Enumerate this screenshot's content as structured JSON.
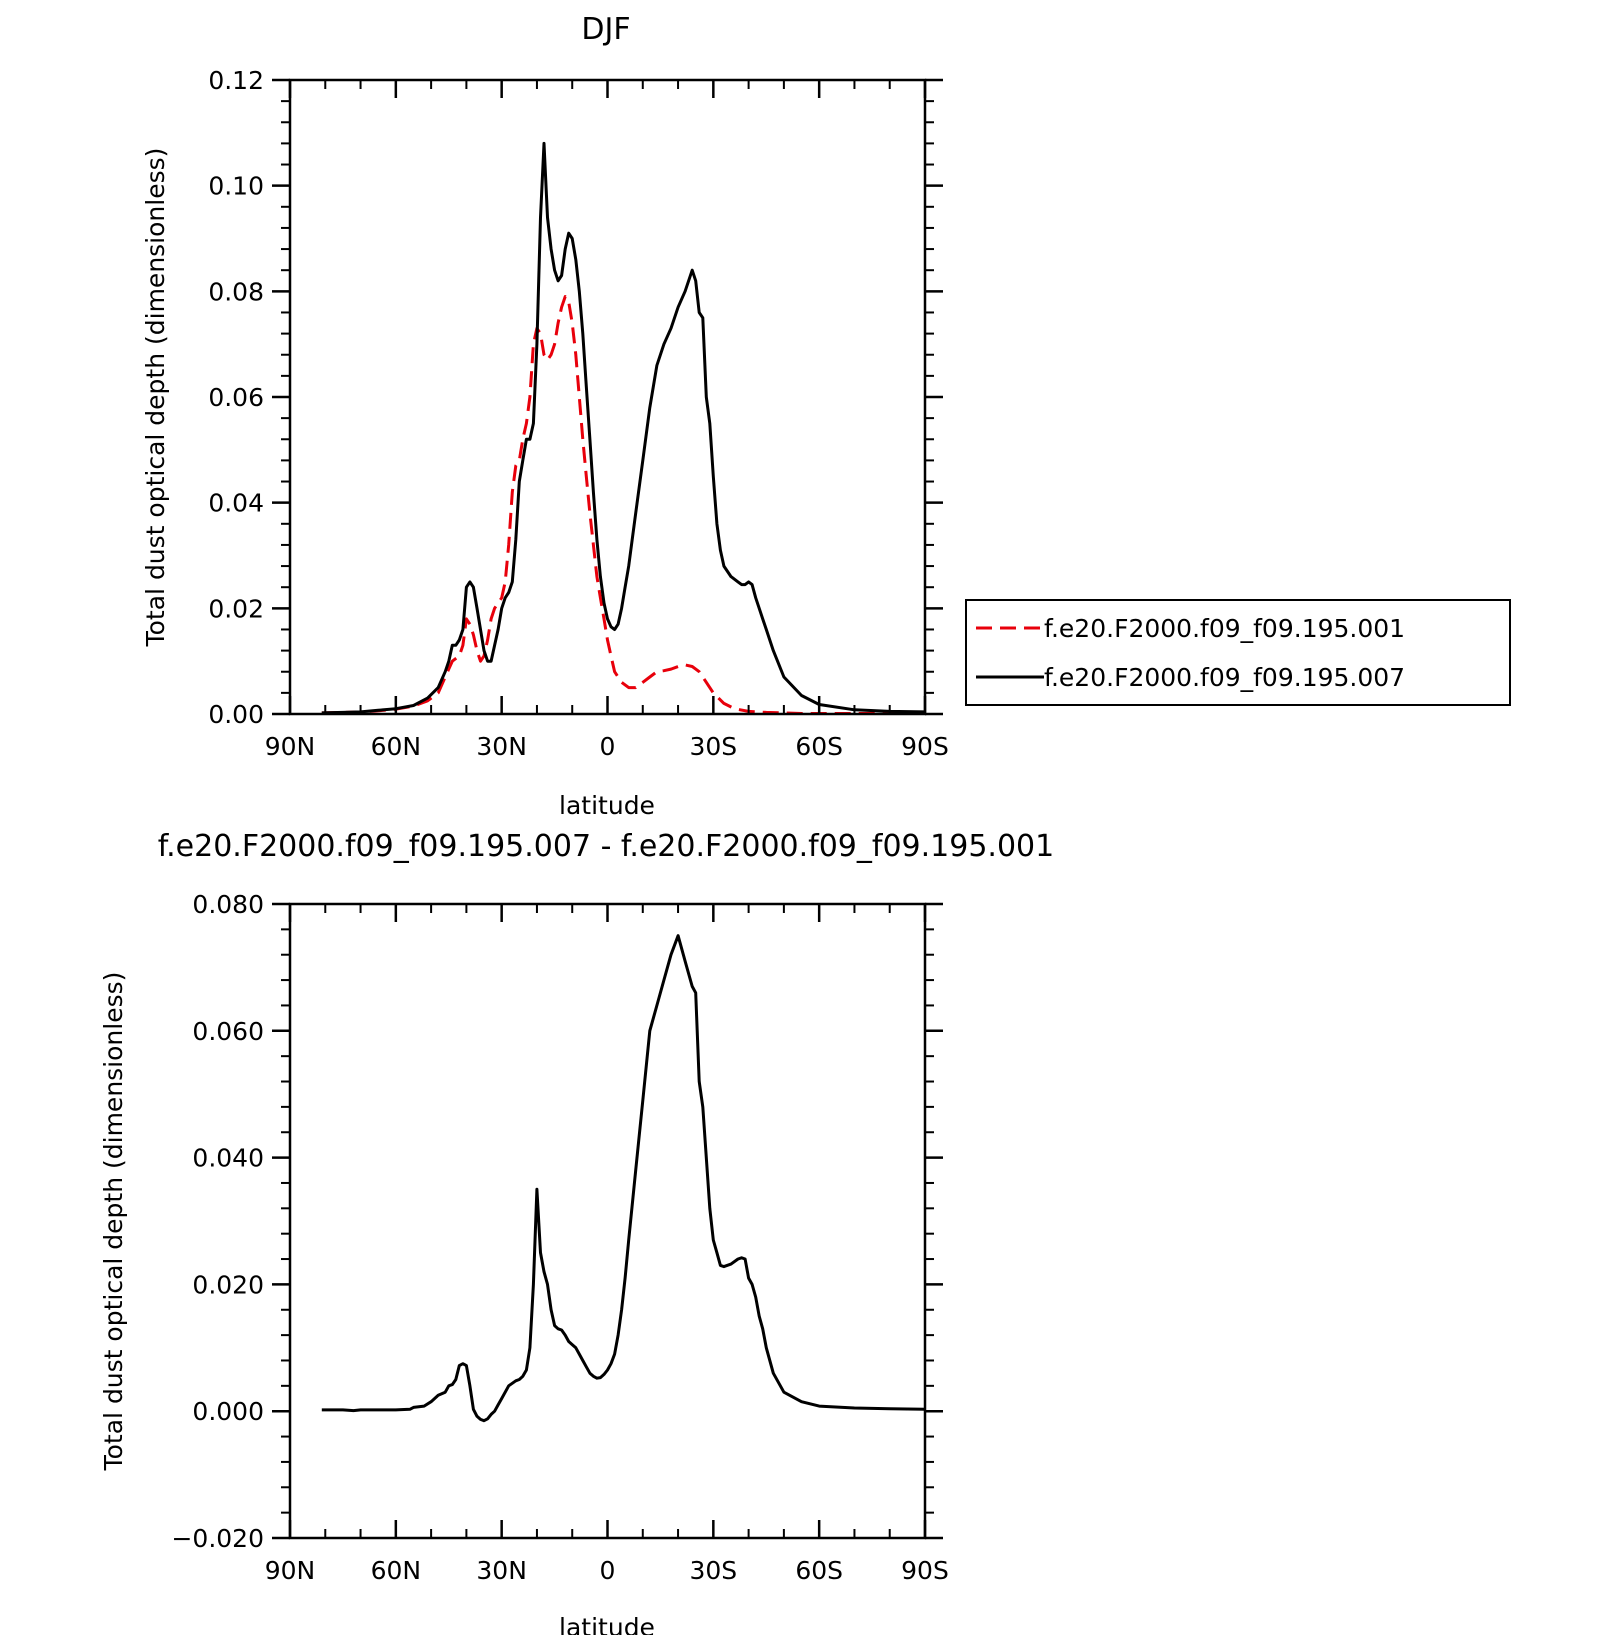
{
  "chart_data": [
    {
      "type": "line",
      "title": "DJF",
      "xlabel": "latitude",
      "ylabel": "Total dust optical depth (dimensionless)",
      "xlim": [
        90,
        -90
      ],
      "ylim": [
        0,
        0.12
      ],
      "x_ticks": [
        90,
        60,
        30,
        0,
        -30,
        -60,
        -90
      ],
      "x_tick_labels": [
        "90N",
        "60N",
        "30N",
        "0",
        "30S",
        "60S",
        "90S"
      ],
      "y_ticks": [
        0,
        0.02,
        0.04,
        0.06,
        0.08,
        0.1,
        0.12
      ],
      "y_tick_labels": [
        "0.00",
        "0.02",
        "0.04",
        "0.06",
        "0.08",
        "0.10",
        "0.12"
      ],
      "legend_placement": "right",
      "series": [
        {
          "name": "f.e20.F2000.f09_f09.195.001",
          "color": "#e8000b",
          "style": "dashed",
          "x": [
            81,
            75,
            70,
            65,
            60,
            55,
            51,
            48,
            46,
            44,
            42,
            41,
            40,
            39,
            38,
            37,
            36,
            35,
            34,
            33,
            32,
            31,
            30,
            29,
            28,
            27,
            26,
            25,
            24,
            23,
            22,
            21,
            20,
            19,
            18,
            17,
            16,
            15,
            14,
            13,
            12,
            11,
            10,
            9,
            8,
            7,
            6,
            5,
            4,
            3,
            2,
            1,
            0,
            -1,
            -2,
            -4,
            -6,
            -8,
            -10,
            -12,
            -14,
            -16,
            -18,
            -20,
            -22,
            -24,
            -25,
            -26,
            -28,
            -30,
            -33,
            -36,
            -40,
            -45,
            -50,
            -55,
            -60,
            -70,
            -80,
            -90
          ],
          "y": [
            0.0002,
            0.0003,
            0.0004,
            0.0006,
            0.0009,
            0.0015,
            0.0025,
            0.004,
            0.007,
            0.01,
            0.011,
            0.013,
            0.018,
            0.017,
            0.015,
            0.012,
            0.01,
            0.011,
            0.014,
            0.018,
            0.02,
            0.021,
            0.022,
            0.025,
            0.032,
            0.042,
            0.047,
            0.048,
            0.052,
            0.055,
            0.06,
            0.07,
            0.073,
            0.072,
            0.068,
            0.067,
            0.068,
            0.07,
            0.074,
            0.077,
            0.079,
            0.078,
            0.074,
            0.068,
            0.06,
            0.052,
            0.045,
            0.038,
            0.032,
            0.026,
            0.022,
            0.018,
            0.014,
            0.011,
            0.008,
            0.006,
            0.005,
            0.005,
            0.006,
            0.007,
            0.008,
            0.0082,
            0.0085,
            0.009,
            0.0093,
            0.009,
            0.0085,
            0.008,
            0.006,
            0.004,
            0.002,
            0.001,
            0.0005,
            0.0003,
            0.0002,
            0.0001,
            0.0001,
            0.0001,
            0.0001,
            0.0001
          ]
        },
        {
          "name": "f.e20.F2000.f09_f09.195.007",
          "color": "#000000",
          "style": "solid",
          "x": [
            81,
            75,
            70,
            65,
            60,
            55,
            51,
            48,
            46,
            45,
            44,
            43,
            42,
            41,
            40,
            39,
            38,
            37,
            36,
            35,
            34,
            33,
            32,
            31,
            30,
            29,
            28,
            27,
            26,
            25,
            24,
            23,
            22,
            21,
            20,
            19,
            18,
            17,
            16,
            15,
            14,
            13,
            12,
            11,
            10,
            9,
            8,
            7,
            6,
            5,
            4,
            3,
            2,
            1,
            0,
            -1,
            -2,
            -3,
            -4,
            -5,
            -6,
            -7,
            -8,
            -10,
            -12,
            -14,
            -16,
            -18,
            -20,
            -22,
            -24,
            -25,
            -26,
            -27,
            -28,
            -29,
            -30,
            -31,
            -32,
            -33,
            -35,
            -37,
            -38,
            -39,
            -40,
            -41,
            -42,
            -43,
            -44,
            -45,
            -47,
            -50,
            -55,
            -60,
            -70,
            -80,
            -90
          ],
          "y": [
            0.0002,
            0.0003,
            0.0004,
            0.0007,
            0.001,
            0.0016,
            0.003,
            0.005,
            0.008,
            0.01,
            0.013,
            0.013,
            0.014,
            0.016,
            0.024,
            0.025,
            0.024,
            0.02,
            0.016,
            0.012,
            0.01,
            0.01,
            0.013,
            0.016,
            0.02,
            0.022,
            0.023,
            0.025,
            0.033,
            0.044,
            0.048,
            0.052,
            0.052,
            0.055,
            0.07,
            0.094,
            0.108,
            0.094,
            0.088,
            0.084,
            0.082,
            0.083,
            0.088,
            0.091,
            0.09,
            0.086,
            0.08,
            0.072,
            0.062,
            0.052,
            0.042,
            0.033,
            0.026,
            0.021,
            0.018,
            0.0165,
            0.016,
            0.017,
            0.02,
            0.024,
            0.028,
            0.033,
            0.038,
            0.048,
            0.058,
            0.066,
            0.07,
            0.073,
            0.077,
            0.08,
            0.084,
            0.082,
            0.076,
            0.075,
            0.06,
            0.055,
            0.045,
            0.036,
            0.031,
            0.028,
            0.026,
            0.025,
            0.0245,
            0.0245,
            0.025,
            0.0245,
            0.022,
            0.02,
            0.018,
            0.016,
            0.012,
            0.007,
            0.0035,
            0.0018,
            0.0008,
            0.0005,
            0.0004
          ]
        }
      ]
    },
    {
      "type": "line",
      "title": "f.e20.F2000.f09_f09.195.007 - f.e20.F2000.f09_f09.195.001",
      "xlabel": "latitude",
      "ylabel": "Total dust optical depth (dimensionless)",
      "xlim": [
        90,
        -90
      ],
      "ylim": [
        -0.02,
        0.08
      ],
      "x_ticks": [
        90,
        60,
        30,
        0,
        -30,
        -60,
        -90
      ],
      "x_tick_labels": [
        "90N",
        "60N",
        "30N",
        "0",
        "30S",
        "60S",
        "90S"
      ],
      "y_ticks": [
        -0.02,
        0.0,
        0.02,
        0.04,
        0.06,
        0.08
      ],
      "y_tick_labels": [
        "-0.020",
        "0.000",
        "0.020",
        "0.040",
        "0.060",
        "0.080"
      ],
      "series": [
        {
          "color": "#000000",
          "style": "solid",
          "x": [
            81,
            75,
            72,
            70,
            65,
            60,
            56,
            55,
            52,
            50,
            48,
            46,
            45,
            44,
            43,
            42,
            41,
            40,
            39,
            38,
            37,
            36,
            35,
            34,
            33,
            32,
            31,
            30,
            28,
            26,
            25,
            24,
            23,
            22,
            21,
            20,
            19,
            18,
            17,
            16,
            15,
            14,
            13,
            12,
            11,
            10,
            9,
            8,
            7,
            6,
            5,
            4,
            3,
            2,
            1,
            0,
            -1,
            -2,
            -3,
            -4,
            -5,
            -6,
            -8,
            -10,
            -12,
            -14,
            -16,
            -18,
            -20,
            -22,
            -24,
            -25,
            -26,
            -27,
            -28,
            -29,
            -30,
            -31,
            -32,
            -33,
            -35,
            -37,
            -38,
            -39,
            -40,
            -41,
            -42,
            -43,
            -44,
            -45,
            -47,
            -50,
            -55,
            -60,
            -70,
            -80,
            -90
          ],
          "y": [
            0.0002,
            0.0002,
            0.0001,
            0.0002,
            0.0002,
            0.0002,
            0.0003,
            0.0006,
            0.0008,
            0.0015,
            0.0025,
            0.003,
            0.004,
            0.0042,
            0.005,
            0.0072,
            0.0075,
            0.0072,
            0.004,
            0.0003,
            -0.0008,
            -0.0013,
            -0.0015,
            -0.0012,
            -0.0005,
            0.0,
            0.001,
            0.002,
            0.004,
            0.0048,
            0.005,
            0.0055,
            0.0065,
            0.01,
            0.02,
            0.035,
            0.025,
            0.022,
            0.02,
            0.016,
            0.0135,
            0.013,
            0.0128,
            0.012,
            0.011,
            0.0105,
            0.01,
            0.009,
            0.008,
            0.007,
            0.006,
            0.0055,
            0.0052,
            0.0053,
            0.0058,
            0.0065,
            0.0075,
            0.009,
            0.012,
            0.016,
            0.021,
            0.027,
            0.038,
            0.049,
            0.06,
            0.064,
            0.068,
            0.072,
            0.075,
            0.071,
            0.067,
            0.066,
            0.052,
            0.048,
            0.04,
            0.032,
            0.027,
            0.025,
            0.023,
            0.0228,
            0.0232,
            0.024,
            0.0242,
            0.024,
            0.021,
            0.02,
            0.018,
            0.015,
            0.013,
            0.01,
            0.006,
            0.003,
            0.0015,
            0.0008,
            0.0005,
            0.0004,
            0.0003
          ]
        }
      ]
    }
  ]
}
